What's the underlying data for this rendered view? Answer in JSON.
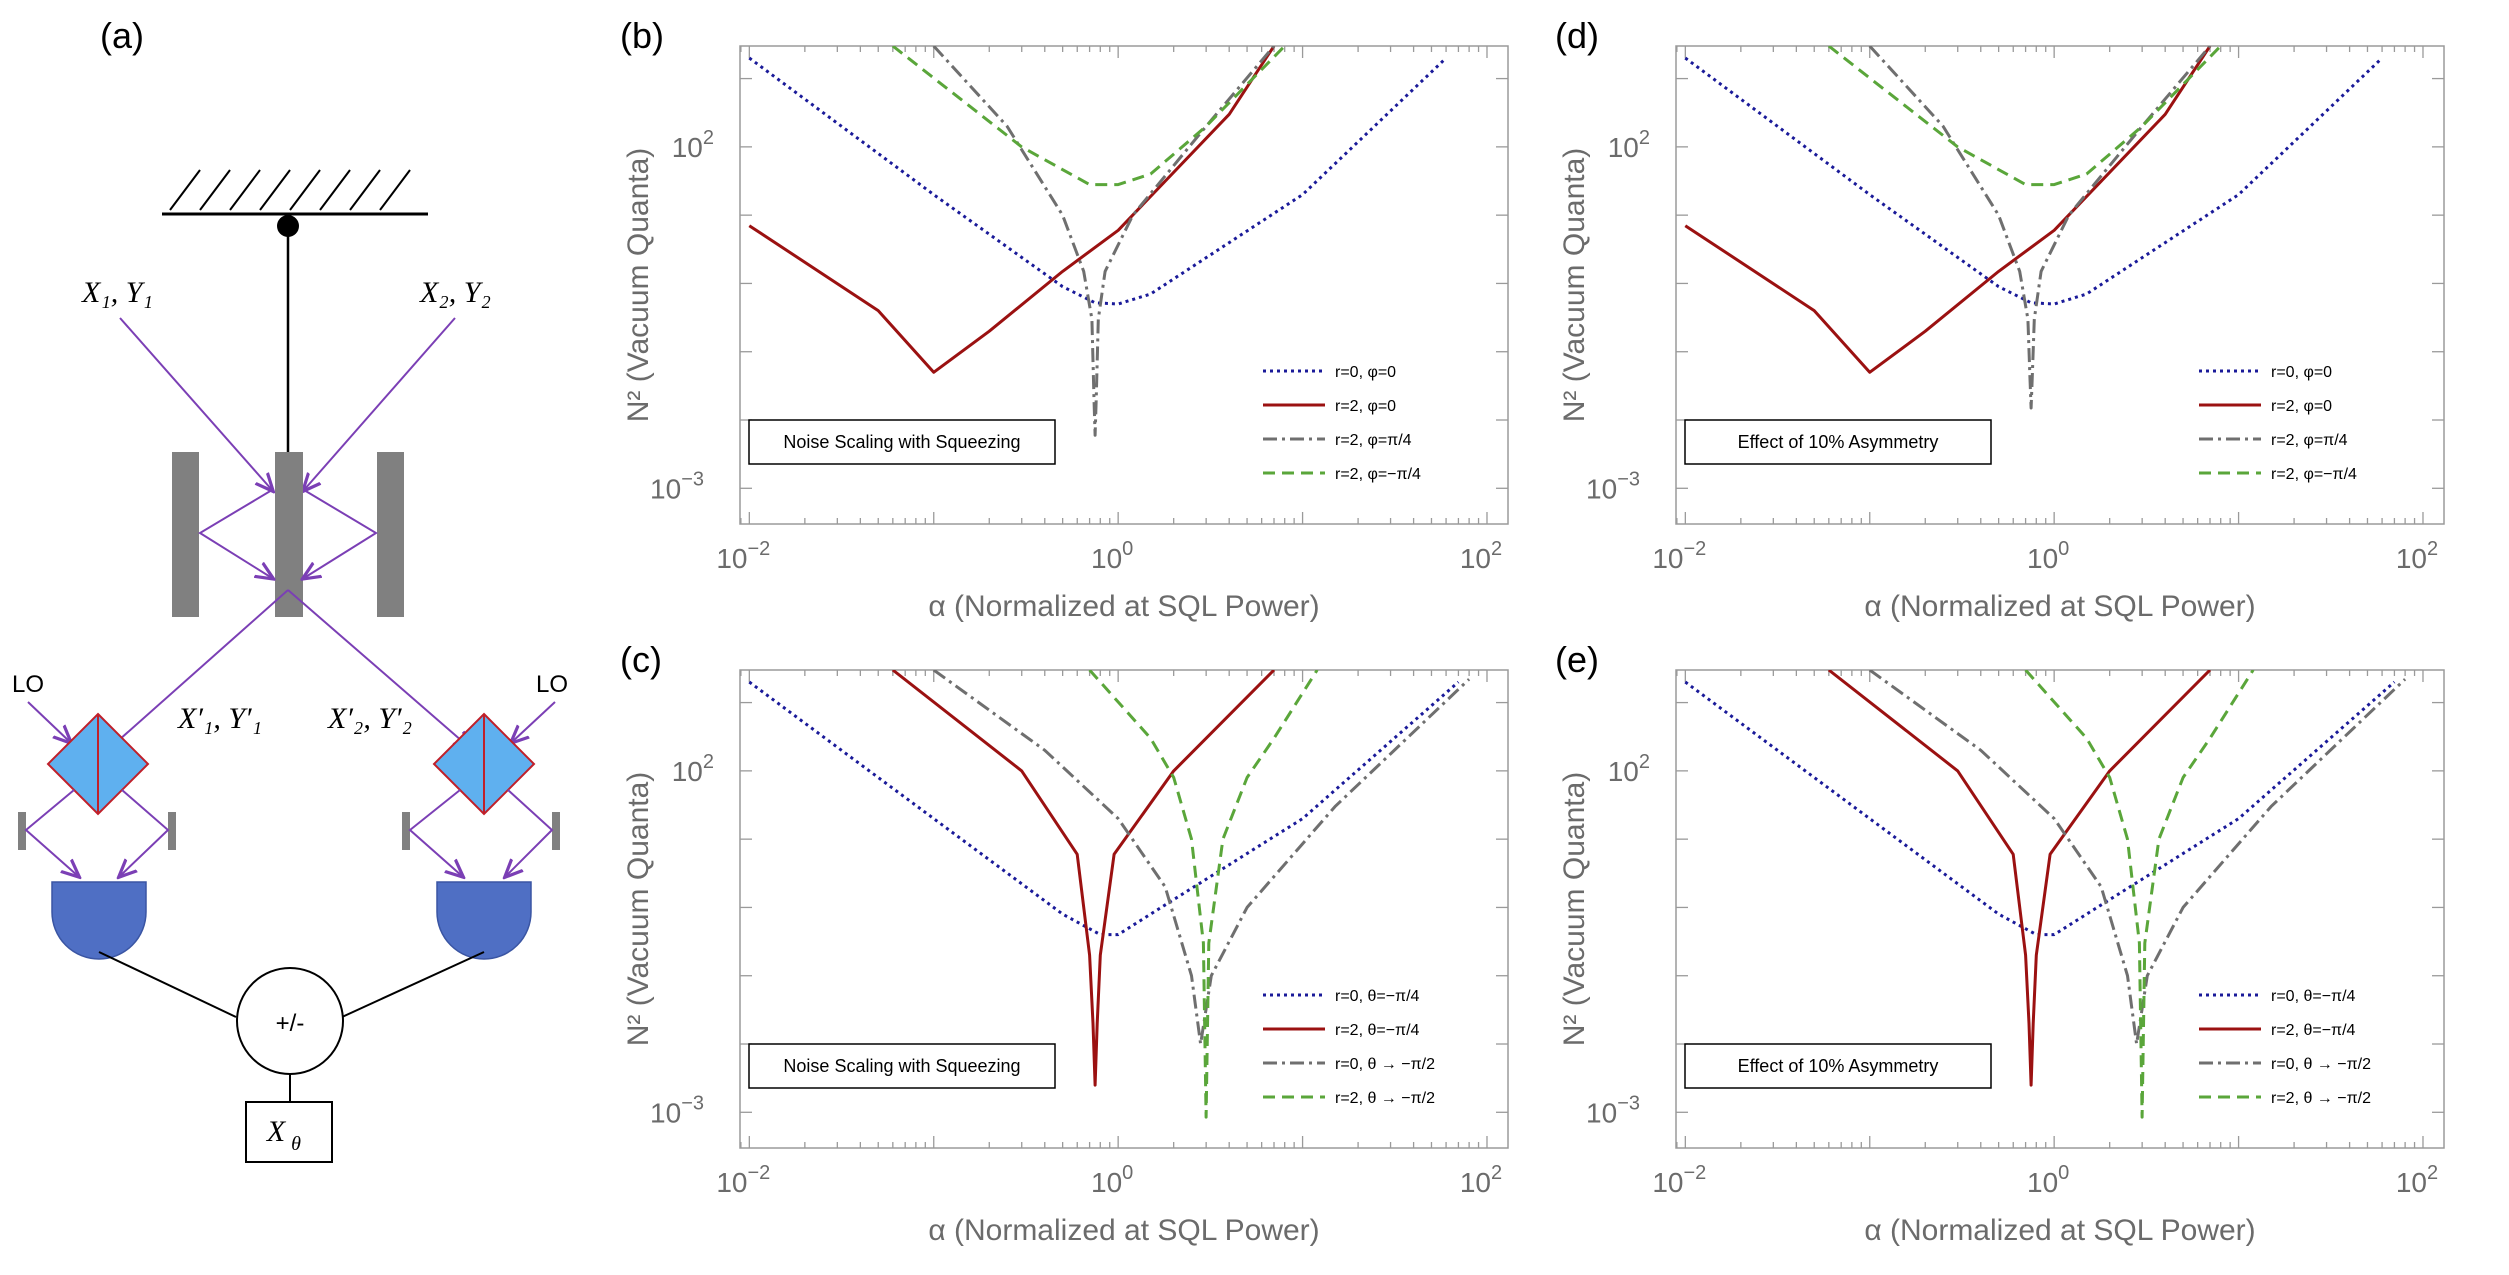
{
  "diagram": {
    "label": "(a)",
    "input_left": "X₁, Y₁",
    "input_right": "X₂, Y₂",
    "output_left": "X′₁, Y′₁",
    "output_right": "X′₂, Y′₂",
    "lo_left": "LO",
    "lo_right": "LO",
    "combiner": "+/-",
    "output_box": "X",
    "output_box_sub": "θ"
  },
  "chart_data": [
    {
      "label": "(b)",
      "type": "line",
      "box_text": "Noise Scaling with Squeezing",
      "xlabel": "α (Normalized at SQL Power)",
      "ylabel": "N² (Vacuum Quanta)",
      "xscale": "log",
      "yscale": "log",
      "xlim": [
        0.0089,
        130
      ],
      "ylim": [
        0.0003,
        3000
      ],
      "x_ticks": [
        {
          "base": "10",
          "exp": "−2"
        },
        {
          "base": "10",
          "exp": "0"
        },
        {
          "base": "10",
          "exp": "2"
        }
      ],
      "y_ticks": [
        {
          "base": "10",
          "exp": "2"
        },
        {
          "base": "10",
          "exp": "−3"
        }
      ],
      "legend_position": "bottom-right",
      "series": [
        {
          "name": "r=0, φ=0",
          "color": "#1a1a99",
          "dash": "3,4",
          "width": 3,
          "points": [
            [
              0.01,
              2000
            ],
            [
              0.1,
              20
            ],
            [
              0.5,
              0.9
            ],
            [
              0.75,
              0.52
            ],
            [
              1.0,
              0.5
            ],
            [
              1.5,
              0.7
            ],
            [
              10,
              20
            ],
            [
              60,
              2000
            ]
          ]
        },
        {
          "name": "r=2, φ=0",
          "color": "#9b1111",
          "dash": "",
          "width": 3,
          "points": [
            [
              0.01,
              7
            ],
            [
              0.05,
              0.4
            ],
            [
              0.1,
              0.05
            ],
            [
              0.2,
              0.2
            ],
            [
              0.5,
              1.5
            ],
            [
              1,
              6
            ],
            [
              4,
              300
            ],
            [
              7,
              3000
            ]
          ]
        },
        {
          "name": "r=2, φ=π/4",
          "color": "#6f6f6f",
          "dash": "14,5,3,5",
          "width": 3,
          "points": [
            [
              0.1,
              3000
            ],
            [
              0.25,
              200
            ],
            [
              0.5,
              10
            ],
            [
              0.65,
              1.5
            ],
            [
              0.72,
              0.3
            ],
            [
              0.74,
              0.02
            ],
            [
              0.75,
              0.006
            ],
            [
              0.76,
              0.02
            ],
            [
              0.78,
              0.3
            ],
            [
              0.85,
              1.5
            ],
            [
              1.2,
              10
            ],
            [
              3,
              200
            ],
            [
              7,
              3000
            ]
          ]
        },
        {
          "name": "r=2, φ=−π/4",
          "color": "#5aa63a",
          "dash": "12,7",
          "width": 3,
          "points": [
            [
              0.06,
              3000
            ],
            [
              0.3,
              100
            ],
            [
              0.7,
              28
            ],
            [
              1.0,
              28
            ],
            [
              1.5,
              40
            ],
            [
              3,
              200
            ],
            [
              8,
              3000
            ]
          ]
        }
      ]
    },
    {
      "label": "(c)",
      "type": "line",
      "box_text": "Noise Scaling with Squeezing",
      "xlabel": "α (Normalized at SQL Power)",
      "ylabel": "N² (Vacuum Quanta)",
      "xscale": "log",
      "yscale": "log",
      "xlim": [
        0.0089,
        130
      ],
      "ylim": [
        0.0003,
        3000
      ],
      "x_ticks": [
        {
          "base": "10",
          "exp": "−2"
        },
        {
          "base": "10",
          "exp": "0"
        },
        {
          "base": "10",
          "exp": "2"
        }
      ],
      "y_ticks": [
        {
          "base": "10",
          "exp": "2"
        },
        {
          "base": "10",
          "exp": "−3"
        }
      ],
      "legend_position": "bottom-right",
      "series": [
        {
          "name": "r=0, θ=−π/4",
          "color": "#1a1a99",
          "dash": "3,4",
          "width": 3,
          "points": [
            [
              0.01,
              2000
            ],
            [
              0.1,
              20
            ],
            [
              0.5,
              0.8
            ],
            [
              0.8,
              0.4
            ],
            [
              1.0,
              0.4
            ],
            [
              1.5,
              0.8
            ],
            [
              10,
              20
            ],
            [
              70,
              2000
            ]
          ]
        },
        {
          "name": "r=2, θ=−π/4",
          "color": "#9b1111",
          "dash": "",
          "width": 3,
          "points": [
            [
              0.06,
              3000
            ],
            [
              0.3,
              100
            ],
            [
              0.6,
              6
            ],
            [
              0.7,
              0.2
            ],
            [
              0.73,
              0.02
            ],
            [
              0.75,
              0.0025
            ],
            [
              0.77,
              0.02
            ],
            [
              0.8,
              0.2
            ],
            [
              0.95,
              6
            ],
            [
              2,
              100
            ],
            [
              7,
              3000
            ]
          ]
        },
        {
          "name": "r=0, θ → −π/2",
          "color": "#6f6f6f",
          "dash": "14,5,3,5",
          "width": 3,
          "points": [
            [
              0.1,
              3000
            ],
            [
              0.4,
              200
            ],
            [
              1.0,
              20
            ],
            [
              1.8,
              2.0
            ],
            [
              2.5,
              0.1
            ],
            [
              2.8,
              0.01
            ],
            [
              3.2,
              0.1
            ],
            [
              5,
              1
            ],
            [
              15,
              30
            ],
            [
              80,
              2200
            ]
          ]
        },
        {
          "name": "r=2, θ → −π/2",
          "color": "#5aa63a",
          "dash": "12,7",
          "width": 3,
          "points": [
            [
              0.7,
              3000
            ],
            [
              1.5,
              300
            ],
            [
              2.0,
              80
            ],
            [
              2.5,
              10
            ],
            [
              2.9,
              0.3
            ],
            [
              3.0,
              0.00085
            ],
            [
              3.1,
              0.3
            ],
            [
              3.7,
              10
            ],
            [
              5,
              80
            ],
            [
              7,
              300
            ],
            [
              12,
              3000
            ]
          ]
        }
      ]
    },
    {
      "label": "(d)",
      "type": "line",
      "box_text": "Effect of 10% Asymmetry",
      "xlabel": "α (Normalized at SQL Power)",
      "ylabel": "N² (Vacuum Quanta)",
      "xscale": "log",
      "yscale": "log",
      "xlim": [
        0.0089,
        130
      ],
      "ylim": [
        0.0003,
        3000
      ],
      "x_ticks": [
        {
          "base": "10",
          "exp": "−2"
        },
        {
          "base": "10",
          "exp": "0"
        },
        {
          "base": "10",
          "exp": "2"
        }
      ],
      "y_ticks": [
        {
          "base": "10",
          "exp": "2"
        },
        {
          "base": "10",
          "exp": "−3"
        }
      ],
      "legend_position": "bottom-right",
      "series": [
        {
          "name": "r=0, φ=0",
          "color": "#1a1a99",
          "dash": "3,4",
          "width": 3,
          "points": [
            [
              0.01,
              2000
            ],
            [
              0.1,
              20
            ],
            [
              0.5,
              0.9
            ],
            [
              0.75,
              0.52
            ],
            [
              1.0,
              0.5
            ],
            [
              1.5,
              0.7
            ],
            [
              10,
              20
            ],
            [
              60,
              2000
            ]
          ]
        },
        {
          "name": "r=2, φ=0",
          "color": "#9b1111",
          "dash": "",
          "width": 3,
          "points": [
            [
              0.01,
              7
            ],
            [
              0.05,
              0.4
            ],
            [
              0.1,
              0.05
            ],
            [
              0.2,
              0.2
            ],
            [
              0.5,
              1.5
            ],
            [
              1,
              6
            ],
            [
              4,
              300
            ],
            [
              7,
              3000
            ]
          ]
        },
        {
          "name": "r=2, φ=π/4",
          "color": "#6f6f6f",
          "dash": "14,5,3,5",
          "width": 3,
          "points": [
            [
              0.1,
              3000
            ],
            [
              0.25,
              200
            ],
            [
              0.5,
              10
            ],
            [
              0.65,
              1.5
            ],
            [
              0.72,
              0.3
            ],
            [
              0.74,
              0.04
            ],
            [
              0.75,
              0.015
            ],
            [
              0.76,
              0.04
            ],
            [
              0.78,
              0.3
            ],
            [
              0.85,
              1.5
            ],
            [
              1.2,
              10
            ],
            [
              3,
              200
            ],
            [
              7,
              3000
            ]
          ]
        },
        {
          "name": "r=2, φ=−π/4",
          "color": "#5aa63a",
          "dash": "12,7",
          "width": 3,
          "points": [
            [
              0.06,
              3000
            ],
            [
              0.3,
              100
            ],
            [
              0.7,
              28
            ],
            [
              1.0,
              28
            ],
            [
              1.5,
              40
            ],
            [
              3,
              200
            ],
            [
              8,
              3000
            ]
          ]
        }
      ]
    },
    {
      "label": "(e)",
      "type": "line",
      "box_text": "Effect of 10% Asymmetry",
      "xlabel": "α (Normalized at SQL Power)",
      "ylabel": "N² (Vacuum Quanta)",
      "xscale": "log",
      "yscale": "log",
      "xlim": [
        0.0089,
        130
      ],
      "ylim": [
        0.0003,
        3000
      ],
      "x_ticks": [
        {
          "base": "10",
          "exp": "−2"
        },
        {
          "base": "10",
          "exp": "0"
        },
        {
          "base": "10",
          "exp": "2"
        }
      ],
      "y_ticks": [
        {
          "base": "10",
          "exp": "2"
        },
        {
          "base": "10",
          "exp": "−3"
        }
      ],
      "legend_position": "bottom-right",
      "series": [
        {
          "name": "r=0, θ=−π/4",
          "color": "#1a1a99",
          "dash": "3,4",
          "width": 3,
          "points": [
            [
              0.01,
              2000
            ],
            [
              0.1,
              20
            ],
            [
              0.5,
              0.8
            ],
            [
              0.8,
              0.4
            ],
            [
              1.0,
              0.4
            ],
            [
              1.5,
              0.8
            ],
            [
              10,
              20
            ],
            [
              70,
              2000
            ]
          ]
        },
        {
          "name": "r=2, θ=−π/4",
          "color": "#9b1111",
          "dash": "",
          "width": 3,
          "points": [
            [
              0.06,
              3000
            ],
            [
              0.3,
              100
            ],
            [
              0.6,
              6
            ],
            [
              0.7,
              0.2
            ],
            [
              0.73,
              0.02
            ],
            [
              0.75,
              0.0025
            ],
            [
              0.77,
              0.02
            ],
            [
              0.8,
              0.2
            ],
            [
              0.95,
              6
            ],
            [
              2,
              100
            ],
            [
              7,
              3000
            ]
          ]
        },
        {
          "name": "r=0, θ → −π/2",
          "color": "#6f6f6f",
          "dash": "14,5,3,5",
          "width": 3,
          "points": [
            [
              0.1,
              3000
            ],
            [
              0.4,
              200
            ],
            [
              1.0,
              20
            ],
            [
              1.8,
              2.0
            ],
            [
              2.5,
              0.1
            ],
            [
              2.8,
              0.01
            ],
            [
              3.2,
              0.1
            ],
            [
              5,
              1
            ],
            [
              15,
              30
            ],
            [
              80,
              2200
            ]
          ]
        },
        {
          "name": "r=2, θ → −π/2",
          "color": "#5aa63a",
          "dash": "12,7",
          "width": 3,
          "points": [
            [
              0.7,
              3000
            ],
            [
              1.5,
              300
            ],
            [
              2.0,
              80
            ],
            [
              2.5,
              10
            ],
            [
              2.9,
              0.3
            ],
            [
              3.0,
              0.00085
            ],
            [
              3.1,
              0.3
            ],
            [
              3.7,
              10
            ],
            [
              5,
              80
            ],
            [
              7,
              300
            ],
            [
              12,
              3000
            ]
          ]
        }
      ]
    }
  ]
}
